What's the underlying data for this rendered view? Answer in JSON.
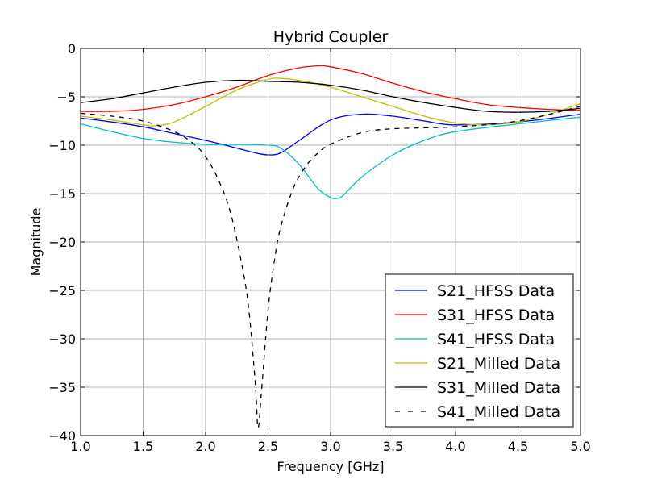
{
  "chart_data": {
    "type": "line",
    "title": "Hybrid Coupler",
    "xlabel": "Frequency [GHz]",
    "ylabel": "Magnitude",
    "xlim": [
      1.0,
      5.0
    ],
    "ylim": [
      -40,
      0
    ],
    "xticks": [
      1.0,
      1.5,
      2.0,
      2.5,
      3.0,
      3.5,
      4.0,
      4.5,
      5.0
    ],
    "xtick_labels": [
      "1.0",
      "1.5",
      "2.0",
      "2.5",
      "3.0",
      "3.5",
      "4.0",
      "4.5",
      "5.0"
    ],
    "yticks": [
      0,
      -5,
      -10,
      -15,
      -20,
      -25,
      -30,
      -35,
      -40
    ],
    "ytick_labels": [
      "0",
      "−5",
      "−10",
      "−15",
      "−20",
      "−25",
      "−30",
      "−35",
      "−40"
    ],
    "grid": true,
    "legend_position": "lower-right",
    "series": [
      {
        "name": "S21_HFSS Data",
        "color": "#0000ff",
        "dash": "solid",
        "x": [
          1.0,
          1.25,
          1.5,
          1.75,
          2.0,
          2.25,
          2.4,
          2.5,
          2.6,
          2.75,
          3.0,
          3.25,
          3.5,
          3.75,
          4.0,
          4.5,
          5.0
        ],
        "y": [
          -7.2,
          -7.6,
          -8.1,
          -8.8,
          -9.5,
          -10.3,
          -10.8,
          -11.0,
          -10.8,
          -9.5,
          -7.4,
          -6.8,
          -7.0,
          -7.5,
          -7.9,
          -7.6,
          -6.8
        ]
      },
      {
        "name": "S31_HFSS Data",
        "color": "#ff0000",
        "dash": "solid",
        "x": [
          1.0,
          1.25,
          1.5,
          1.75,
          2.0,
          2.25,
          2.5,
          2.75,
          2.9,
          3.0,
          3.25,
          3.5,
          3.75,
          4.0,
          4.25,
          4.5,
          4.75,
          5.0
        ],
        "y": [
          -6.5,
          -6.5,
          -6.3,
          -5.8,
          -5.0,
          -4.0,
          -2.8,
          -2.0,
          -1.8,
          -1.9,
          -2.6,
          -3.6,
          -4.5,
          -5.2,
          -5.8,
          -6.1,
          -6.3,
          -6.4
        ]
      },
      {
        "name": "S41_HFSS Data",
        "color": "#00bfbf",
        "dash": "solid",
        "x": [
          1.0,
          1.25,
          1.5,
          1.75,
          2.0,
          2.25,
          2.5,
          2.6,
          2.75,
          2.9,
          3.0,
          3.05,
          3.1,
          3.25,
          3.5,
          3.75,
          4.0,
          4.5,
          5.0
        ],
        "y": [
          -7.8,
          -8.6,
          -9.3,
          -9.7,
          -9.9,
          -9.9,
          -10.0,
          -10.3,
          -12.0,
          -14.5,
          -15.4,
          -15.5,
          -15.2,
          -13.3,
          -11.0,
          -9.5,
          -8.6,
          -7.8,
          -7.1
        ]
      },
      {
        "name": "S21_Milled Data",
        "color": "#bfbf00",
        "dash": "solid",
        "x": [
          1.0,
          1.25,
          1.5,
          1.6,
          1.75,
          2.0,
          2.25,
          2.5,
          2.6,
          2.75,
          3.0,
          3.25,
          3.5,
          3.75,
          4.0,
          4.25,
          4.5,
          4.75,
          5.0
        ],
        "y": [
          -7.0,
          -7.4,
          -7.9,
          -8.0,
          -7.6,
          -6.0,
          -4.3,
          -3.2,
          -3.1,
          -3.3,
          -4.0,
          -5.0,
          -6.0,
          -7.0,
          -7.7,
          -7.9,
          -7.6,
          -6.8,
          -5.7
        ]
      },
      {
        "name": "S31_Milled Data",
        "color": "#000000",
        "dash": "solid",
        "x": [
          1.0,
          1.25,
          1.5,
          1.75,
          2.0,
          2.25,
          2.5,
          2.75,
          3.0,
          3.25,
          3.5,
          3.75,
          4.0,
          4.25,
          4.5,
          4.75,
          5.0
        ],
        "y": [
          -5.6,
          -5.2,
          -4.6,
          -4.0,
          -3.5,
          -3.3,
          -3.4,
          -3.5,
          -3.8,
          -4.3,
          -5.0,
          -5.6,
          -6.1,
          -6.5,
          -6.6,
          -6.5,
          -6.2
        ]
      },
      {
        "name": "S41_Milled Data",
        "color": "#000000",
        "dash": "dashed",
        "x": [
          1.0,
          1.25,
          1.5,
          1.75,
          1.9,
          2.0,
          2.1,
          2.2,
          2.3,
          2.35,
          2.4,
          2.42,
          2.45,
          2.5,
          2.55,
          2.6,
          2.7,
          2.8,
          2.9,
          3.0,
          3.25,
          3.5,
          4.0,
          4.5,
          5.0
        ],
        "y": [
          -6.7,
          -7.0,
          -7.5,
          -8.6,
          -9.8,
          -11.2,
          -13.5,
          -17.0,
          -23.0,
          -27.5,
          -35.0,
          -39.2,
          -35.0,
          -27.0,
          -22.0,
          -18.5,
          -14.5,
          -12.2,
          -10.8,
          -9.9,
          -8.7,
          -8.3,
          -8.1,
          -7.5,
          -6.0
        ]
      }
    ]
  }
}
